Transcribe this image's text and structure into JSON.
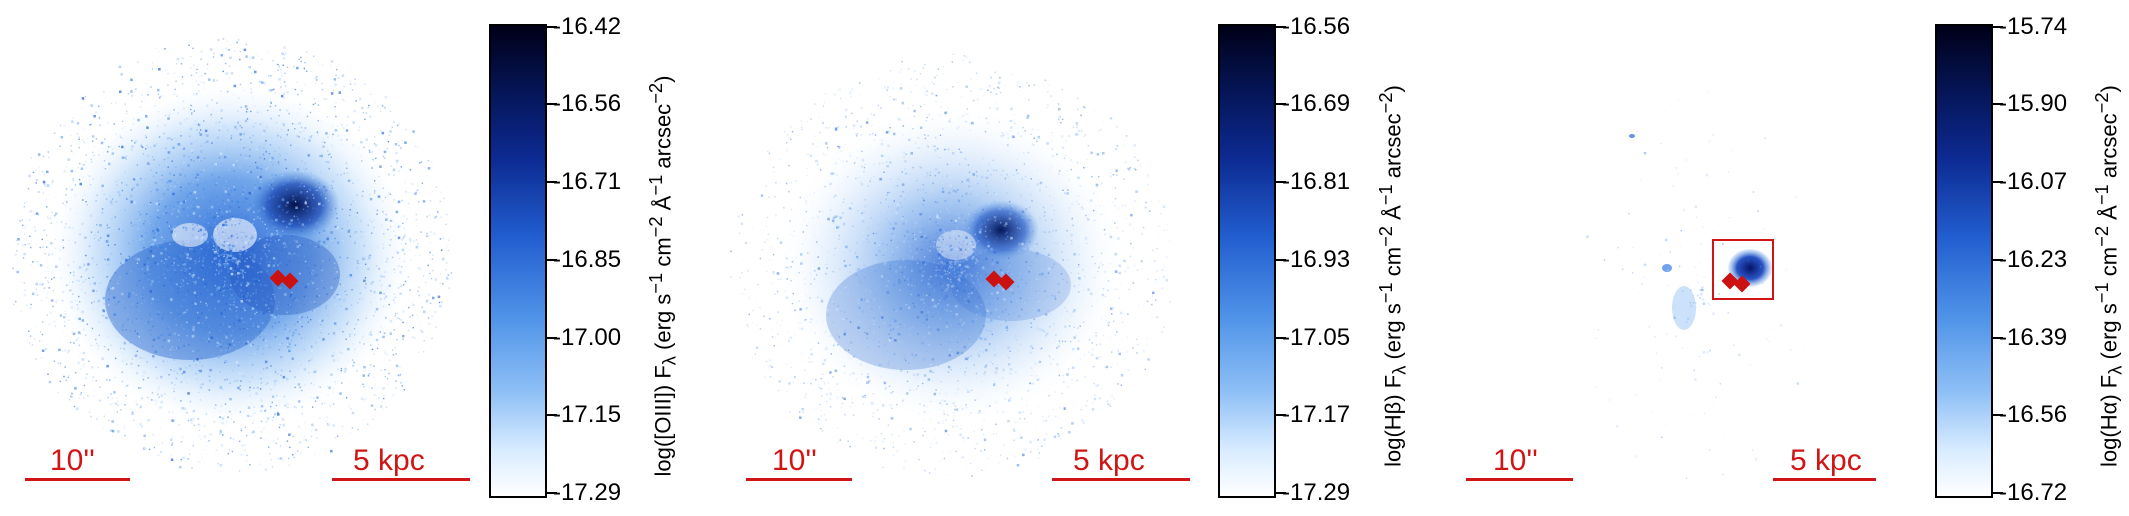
{
  "panels": [
    {
      "name": "OIII",
      "scale_arcsec": "10''",
      "scale_kpc": "5 kpc",
      "colorbar": {
        "ticks": [
          "-16.42",
          "-16.56",
          "-16.71",
          "-16.85",
          "-17.00",
          "-17.15",
          "-17.29"
        ],
        "label": "log([OIII]) F<sub>λ</sub> (erg s<sup>−1</sup> cm<sup>−2</sup> Å<sup>−1</sup> arcsec<sup>−2</sup>)"
      }
    },
    {
      "name": "Hbeta",
      "scale_arcsec": "10''",
      "scale_kpc": "5 kpc",
      "colorbar": {
        "ticks": [
          "-16.56",
          "-16.69",
          "-16.81",
          "-16.93",
          "-17.05",
          "-17.17",
          "-17.29"
        ],
        "label": "log(Hβ) F<sub>λ</sub> (erg s<sup>−1</sup> cm<sup>−2</sup> Å<sup>−1</sup> arcsec<sup>−2</sup>)"
      }
    },
    {
      "name": "Halpha",
      "scale_arcsec": "10''",
      "scale_kpc": "5 kpc",
      "colorbar": {
        "ticks": [
          "-15.74",
          "-15.90",
          "-16.07",
          "-16.23",
          "-16.39",
          "-16.56",
          "-16.72"
        ],
        "label": "log(Hα) F<sub>λ</sub> (erg s<sup>−1</sup> cm<sup>−2</sup> Å<sup>−1</sup> arcsec<sup>−2</sup>)"
      }
    }
  ],
  "colors": {
    "accent": "#d11414",
    "colormap_low": "#ffffff",
    "colormap_high": "#000018"
  }
}
